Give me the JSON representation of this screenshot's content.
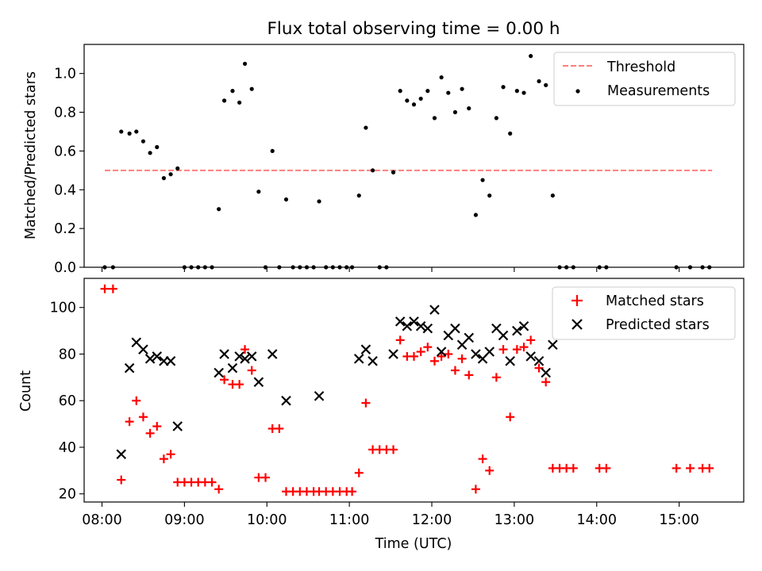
{
  "title": "Flux total observing time = 0.00 h",
  "chart_data": [
    {
      "type": "scatter",
      "ylabel": "Matched/Predicted stars",
      "xlim": [
        "07:47",
        "15:47"
      ],
      "ylim": [
        0,
        1.15
      ],
      "xticks": [
        "08:00",
        "09:00",
        "10:00",
        "11:00",
        "12:00",
        "13:00",
        "14:00",
        "15:00"
      ],
      "yticks": [
        "0.0",
        "0.2",
        "0.4",
        "0.6",
        "0.8",
        "1.0"
      ],
      "legend_position": "upper right",
      "threshold": {
        "name": "Threshold",
        "value": 0.5,
        "x_range": [
          "08:02",
          "15:24"
        ],
        "color": "#ff7f7f"
      },
      "series": [
        {
          "name": "Measurements",
          "marker": "dot",
          "color": "#000000",
          "points": [
            [
              "08:02",
              0.0
            ],
            [
              "08:08",
              0.0
            ],
            [
              "08:14",
              0.7
            ],
            [
              "08:20",
              0.69
            ],
            [
              "08:25",
              0.7
            ],
            [
              "08:30",
              0.65
            ],
            [
              "08:35",
              0.59
            ],
            [
              "08:40",
              0.62
            ],
            [
              "08:45",
              0.46
            ],
            [
              "08:50",
              0.48
            ],
            [
              "08:55",
              0.51
            ],
            [
              "09:00",
              0.0
            ],
            [
              "09:05",
              0.0
            ],
            [
              "09:10",
              0.0
            ],
            [
              "09:15",
              0.0
            ],
            [
              "09:20",
              0.0
            ],
            [
              "09:25",
              0.3
            ],
            [
              "09:29",
              0.86
            ],
            [
              "09:35",
              0.91
            ],
            [
              "09:40",
              0.85
            ],
            [
              "09:44",
              1.05
            ],
            [
              "09:49",
              0.92
            ],
            [
              "09:54",
              0.39
            ],
            [
              "09:59",
              0.0
            ],
            [
              "10:04",
              0.6
            ],
            [
              "10:09",
              0.0
            ],
            [
              "10:14",
              0.35
            ],
            [
              "10:19",
              0.0
            ],
            [
              "10:24",
              0.0
            ],
            [
              "10:29",
              0.0
            ],
            [
              "10:34",
              0.0
            ],
            [
              "10:38",
              0.34
            ],
            [
              "10:43",
              0.0
            ],
            [
              "10:48",
              0.0
            ],
            [
              "10:53",
              0.0
            ],
            [
              "10:58",
              0.0
            ],
            [
              "11:02",
              0.0
            ],
            [
              "11:07",
              0.37
            ],
            [
              "11:12",
              0.72
            ],
            [
              "11:17",
              0.5
            ],
            [
              "11:22",
              0.0
            ],
            [
              "11:27",
              0.0
            ],
            [
              "11:32",
              0.49
            ],
            [
              "11:37",
              0.91
            ],
            [
              "11:42",
              0.86
            ],
            [
              "11:47",
              0.84
            ],
            [
              "11:52",
              0.87
            ],
            [
              "11:57",
              0.91
            ],
            [
              "12:02",
              0.77
            ],
            [
              "12:07",
              0.98
            ],
            [
              "12:12",
              0.9
            ],
            [
              "12:17",
              0.8
            ],
            [
              "12:22",
              0.92
            ],
            [
              "12:27",
              0.82
            ],
            [
              "12:32",
              0.27
            ],
            [
              "12:37",
              0.45
            ],
            [
              "12:42",
              0.37
            ],
            [
              "12:47",
              0.77
            ],
            [
              "12:52",
              0.93
            ],
            [
              "12:57",
              0.69
            ],
            [
              "13:02",
              0.91
            ],
            [
              "13:07",
              0.9
            ],
            [
              "13:12",
              1.09
            ],
            [
              "13:18",
              0.96
            ],
            [
              "13:23",
              0.94
            ],
            [
              "13:28",
              0.37
            ],
            [
              "13:33",
              0.0
            ],
            [
              "13:38",
              0.0
            ],
            [
              "13:43",
              0.0
            ],
            [
              "14:02",
              0.0
            ],
            [
              "14:07",
              0.0
            ],
            [
              "14:58",
              0.0
            ],
            [
              "15:08",
              0.0
            ],
            [
              "15:17",
              0.0
            ],
            [
              "15:22",
              0.0
            ]
          ]
        }
      ]
    },
    {
      "type": "scatter",
      "xlabel": "Time (UTC)",
      "ylabel": "Count",
      "xlim": [
        "07:47",
        "15:47"
      ],
      "ylim": [
        16.5,
        112.5
      ],
      "xticks": [
        "08:00",
        "09:00",
        "10:00",
        "11:00",
        "12:00",
        "13:00",
        "14:00",
        "15:00"
      ],
      "yticks": [
        "20",
        "40",
        "60",
        "80",
        "100"
      ],
      "legend_position": "upper right",
      "series": [
        {
          "name": "Matched stars",
          "marker": "plus",
          "color": "#ff0000",
          "points": [
            [
              "08:02",
              108
            ],
            [
              "08:08",
              108
            ],
            [
              "08:14",
              26
            ],
            [
              "08:20",
              51
            ],
            [
              "08:25",
              60
            ],
            [
              "08:30",
              53
            ],
            [
              "08:35",
              46
            ],
            [
              "08:40",
              49
            ],
            [
              "08:45",
              35
            ],
            [
              "08:50",
              37
            ],
            [
              "08:55",
              25
            ],
            [
              "09:00",
              25
            ],
            [
              "09:05",
              25
            ],
            [
              "09:10",
              25
            ],
            [
              "09:15",
              25
            ],
            [
              "09:20",
              25
            ],
            [
              "09:25",
              22
            ],
            [
              "09:29",
              69
            ],
            [
              "09:35",
              67
            ],
            [
              "09:40",
              67
            ],
            [
              "09:44",
              82
            ],
            [
              "09:49",
              73
            ],
            [
              "09:54",
              27
            ],
            [
              "09:59",
              27
            ],
            [
              "10:04",
              48
            ],
            [
              "10:09",
              48
            ],
            [
              "10:14",
              21
            ],
            [
              "10:19",
              21
            ],
            [
              "10:24",
              21
            ],
            [
              "10:29",
              21
            ],
            [
              "10:34",
              21
            ],
            [
              "10:38",
              21
            ],
            [
              "10:43",
              21
            ],
            [
              "10:48",
              21
            ],
            [
              "10:53",
              21
            ],
            [
              "10:58",
              21
            ],
            [
              "11:02",
              21
            ],
            [
              "11:07",
              29
            ],
            [
              "11:12",
              59
            ],
            [
              "11:17",
              39
            ],
            [
              "11:22",
              39
            ],
            [
              "11:27",
              39
            ],
            [
              "11:32",
              39
            ],
            [
              "11:37",
              86
            ],
            [
              "11:42",
              79
            ],
            [
              "11:47",
              79
            ],
            [
              "11:52",
              81
            ],
            [
              "11:57",
              83
            ],
            [
              "12:02",
              77
            ],
            [
              "12:07",
              79
            ],
            [
              "12:12",
              80
            ],
            [
              "12:17",
              73
            ],
            [
              "12:22",
              78
            ],
            [
              "12:27",
              71
            ],
            [
              "12:32",
              22
            ],
            [
              "12:37",
              35
            ],
            [
              "12:42",
              30
            ],
            [
              "12:47",
              70
            ],
            [
              "12:52",
              82
            ],
            [
              "12:57",
              53
            ],
            [
              "13:02",
              82
            ],
            [
              "13:07",
              83
            ],
            [
              "13:12",
              86
            ],
            [
              "13:18",
              74
            ],
            [
              "13:23",
              68
            ],
            [
              "13:28",
              31
            ],
            [
              "13:33",
              31
            ],
            [
              "13:38",
              31
            ],
            [
              "13:43",
              31
            ],
            [
              "14:02",
              31
            ],
            [
              "14:07",
              31
            ],
            [
              "14:58",
              31
            ],
            [
              "15:08",
              31
            ],
            [
              "15:17",
              31
            ],
            [
              "15:22",
              31
            ]
          ]
        },
        {
          "name": "Predicted stars",
          "marker": "x",
          "color": "#000000",
          "points": [
            [
              "08:14",
              37
            ],
            [
              "08:20",
              74
            ],
            [
              "08:25",
              85
            ],
            [
              "08:30",
              82
            ],
            [
              "08:35",
              78
            ],
            [
              "08:40",
              79
            ],
            [
              "08:45",
              77
            ],
            [
              "08:50",
              77
            ],
            [
              "08:55",
              49
            ],
            [
              "09:25",
              72
            ],
            [
              "09:29",
              80
            ],
            [
              "09:35",
              74
            ],
            [
              "09:40",
              79
            ],
            [
              "09:44",
              78
            ],
            [
              "09:49",
              79
            ],
            [
              "09:54",
              68
            ],
            [
              "10:04",
              80
            ],
            [
              "10:14",
              60
            ],
            [
              "10:38",
              62
            ],
            [
              "11:07",
              78
            ],
            [
              "11:12",
              82
            ],
            [
              "11:17",
              77
            ],
            [
              "11:32",
              80
            ],
            [
              "11:37",
              94
            ],
            [
              "11:42",
              92
            ],
            [
              "11:47",
              94
            ],
            [
              "11:52",
              92
            ],
            [
              "11:57",
              91
            ],
            [
              "12:02",
              99
            ],
            [
              "12:07",
              81
            ],
            [
              "12:12",
              88
            ],
            [
              "12:17",
              91
            ],
            [
              "12:22",
              84
            ],
            [
              "12:27",
              87
            ],
            [
              "12:32",
              80
            ],
            [
              "12:37",
              78
            ],
            [
              "12:42",
              81
            ],
            [
              "12:47",
              91
            ],
            [
              "12:52",
              88
            ],
            [
              "12:57",
              77
            ],
            [
              "13:02",
              90
            ],
            [
              "13:07",
              92
            ],
            [
              "13:12",
              79
            ],
            [
              "13:18",
              77
            ],
            [
              "13:23",
              72
            ],
            [
              "13:28",
              84
            ]
          ]
        }
      ]
    }
  ]
}
